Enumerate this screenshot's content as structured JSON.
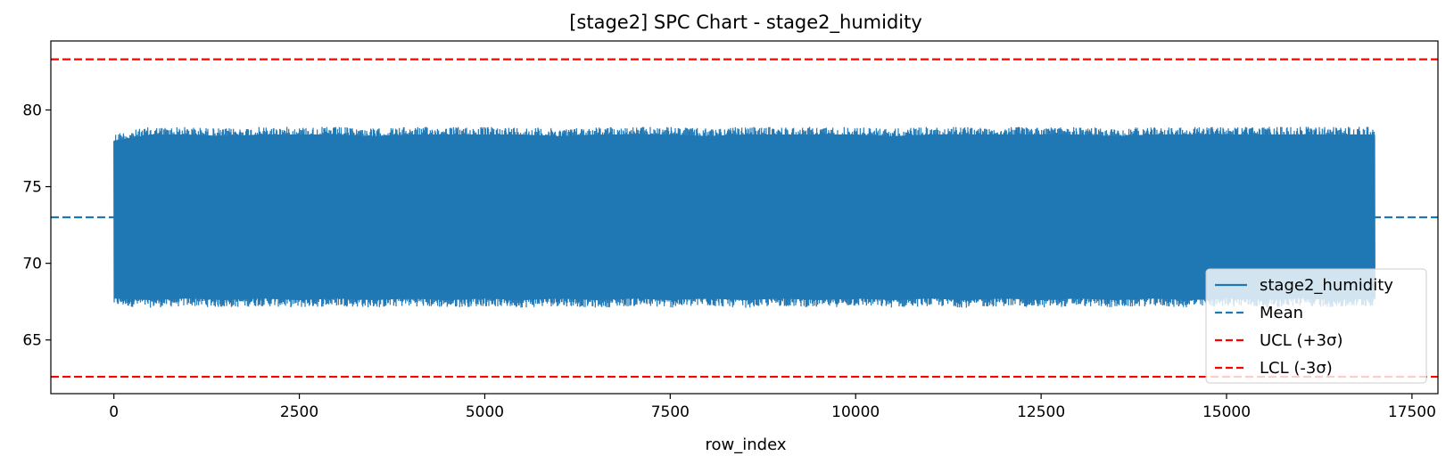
{
  "chart_data": {
    "type": "line",
    "title": "[stage2] SPC Chart - stage2_humidity",
    "xlabel": "row_index",
    "ylabel": "",
    "xlim": [
      -850,
      17850
    ],
    "ylim": [
      61.5,
      84.5
    ],
    "xticks": [
      0,
      2500,
      5000,
      7500,
      10000,
      12500,
      15000,
      17500
    ],
    "yticks": [
      65,
      70,
      75,
      80
    ],
    "grid": false,
    "legend_position": "lower right",
    "series": [
      {
        "name": "stage2_humidity",
        "kind": "line",
        "color": "#1f77b4",
        "x_start": 0,
        "x_end": 17000,
        "typical_min": 67.0,
        "typical_max": 79.0,
        "band": [
          {
            "x": 0,
            "min": 67.2,
            "max": 78.5
          },
          {
            "x": 500,
            "min": 67.1,
            "max": 78.9
          },
          {
            "x": 1000,
            "min": 67.2,
            "max": 78.9
          },
          {
            "x": 1500,
            "min": 67.1,
            "max": 78.8
          },
          {
            "x": 2000,
            "min": 67.2,
            "max": 78.9
          },
          {
            "x": 2500,
            "min": 67.1,
            "max": 78.9
          },
          {
            "x": 3000,
            "min": 67.2,
            "max": 78.9
          },
          {
            "x": 3500,
            "min": 67.1,
            "max": 78.8
          },
          {
            "x": 4000,
            "min": 67.2,
            "max": 78.9
          },
          {
            "x": 4500,
            "min": 67.1,
            "max": 78.9
          },
          {
            "x": 5000,
            "min": 67.2,
            "max": 78.9
          },
          {
            "x": 5500,
            "min": 67.1,
            "max": 78.9
          },
          {
            "x": 6000,
            "min": 67.2,
            "max": 78.8
          },
          {
            "x": 6500,
            "min": 67.1,
            "max": 78.9
          },
          {
            "x": 7000,
            "min": 67.2,
            "max": 78.9
          },
          {
            "x": 7500,
            "min": 67.1,
            "max": 78.9
          },
          {
            "x": 8000,
            "min": 67.2,
            "max": 78.8
          },
          {
            "x": 8500,
            "min": 67.1,
            "max": 78.9
          },
          {
            "x": 9000,
            "min": 67.2,
            "max": 78.9
          },
          {
            "x": 9500,
            "min": 67.1,
            "max": 78.9
          },
          {
            "x": 10000,
            "min": 67.2,
            "max": 78.9
          },
          {
            "x": 10500,
            "min": 67.1,
            "max": 78.8
          },
          {
            "x": 11000,
            "min": 67.2,
            "max": 78.9
          },
          {
            "x": 11500,
            "min": 67.1,
            "max": 78.9
          },
          {
            "x": 12000,
            "min": 67.2,
            "max": 78.9
          },
          {
            "x": 12500,
            "min": 67.1,
            "max": 78.9
          },
          {
            "x": 13000,
            "min": 67.2,
            "max": 78.9
          },
          {
            "x": 13500,
            "min": 67.1,
            "max": 78.8
          },
          {
            "x": 14000,
            "min": 67.2,
            "max": 78.9
          },
          {
            "x": 14500,
            "min": 67.1,
            "max": 78.9
          },
          {
            "x": 15000,
            "min": 67.2,
            "max": 78.9
          },
          {
            "x": 15500,
            "min": 67.1,
            "max": 78.9
          },
          {
            "x": 16000,
            "min": 67.2,
            "max": 78.9
          },
          {
            "x": 16500,
            "min": 67.1,
            "max": 78.9
          },
          {
            "x": 17000,
            "min": 67.2,
            "max": 78.9
          }
        ]
      },
      {
        "name": "Mean",
        "kind": "hline",
        "value": 73.0,
        "color": "#1f77b4",
        "dash": "dashed"
      },
      {
        "name": "UCL (+3σ)",
        "kind": "hline",
        "value": 83.3,
        "color": "#ff0000",
        "dash": "dashed"
      },
      {
        "name": "LCL (-3σ)",
        "kind": "hline",
        "value": 62.6,
        "color": "#ff0000",
        "dash": "dashed"
      }
    ]
  }
}
